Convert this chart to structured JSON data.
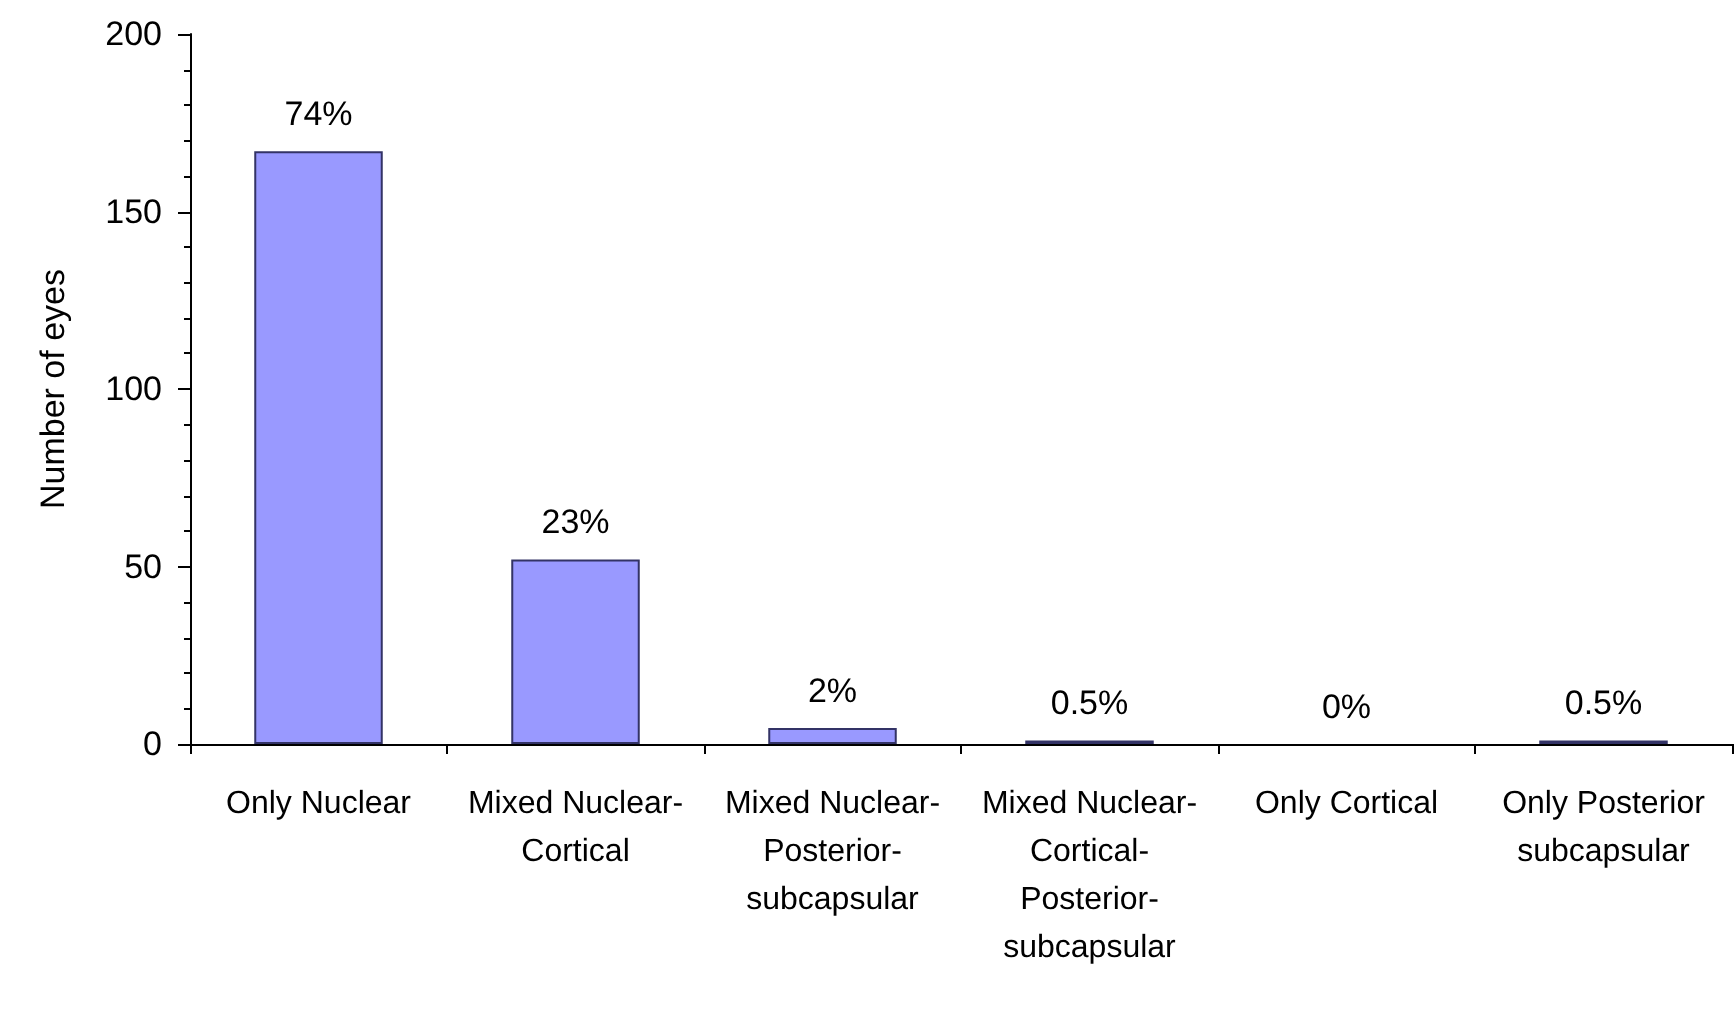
{
  "chart_data": {
    "type": "bar",
    "ylabel": "Number of eyes",
    "categories": [
      "Only Nuclear",
      "Mixed Nuclear-Cortical",
      "Mixed Nuclear-Posterior-subcapsular",
      "Mixed Nuclear-Cortical-Posterior-subcapsular",
      "Only Cortical",
      "Only Posterior subcapsular"
    ],
    "values": [
      167,
      52,
      4.5,
      1,
      0,
      1
    ],
    "annotations": [
      {
        "text": "74%",
        "x": "Only Nuclear",
        "y": 167
      },
      {
        "text": "23%",
        "x": "Mixed Nuclear-Cortical",
        "y": 52
      },
      {
        "text": "2%",
        "x": "Mixed Nuclear-Posterior-subcapsular",
        "y": 4.5
      },
      {
        "text": "0.5%",
        "x": "Mixed Nuclear-Cortical-Posterior-subcapsular",
        "y": 1
      },
      {
        "text": "0%",
        "x": "Only Cortical",
        "y": 0
      },
      {
        "text": "0.5%",
        "x": "Only Posterior subcapsular",
        "y": 1
      }
    ],
    "color": "#9999ff",
    "ylim": [
      0,
      200
    ],
    "yticks": [
      0,
      50,
      100,
      150,
      200
    ],
    "grid": false
  }
}
